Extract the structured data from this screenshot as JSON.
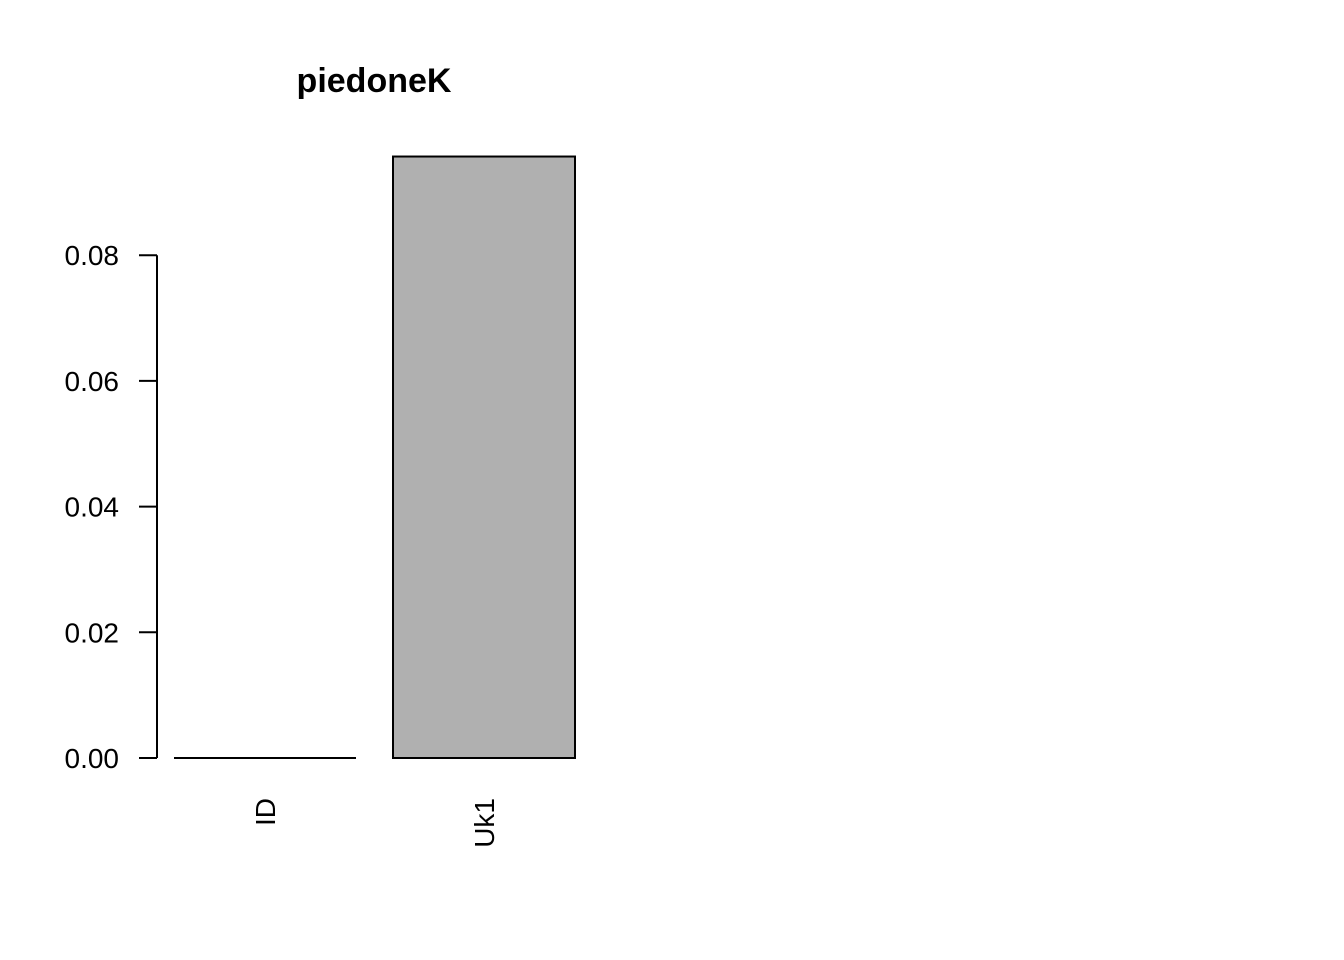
{
  "chart_data": {
    "type": "bar",
    "title": "piedoneK",
    "xlabel": "",
    "ylabel": "",
    "categories": [
      "ID",
      "Uk1"
    ],
    "values": [
      0.0,
      0.0957
    ],
    "yticks": [
      0.0,
      0.02,
      0.04,
      0.06,
      0.08
    ],
    "ytick_labels": [
      "0.00",
      "0.02",
      "0.04",
      "0.06",
      "0.08"
    ],
    "ylim": [
      0,
      0.0957
    ],
    "bar_fill": "#b0b0b0",
    "bar_stroke": "#000000",
    "grid": false,
    "legend": "none",
    "category_label_orientation": "vertical"
  }
}
